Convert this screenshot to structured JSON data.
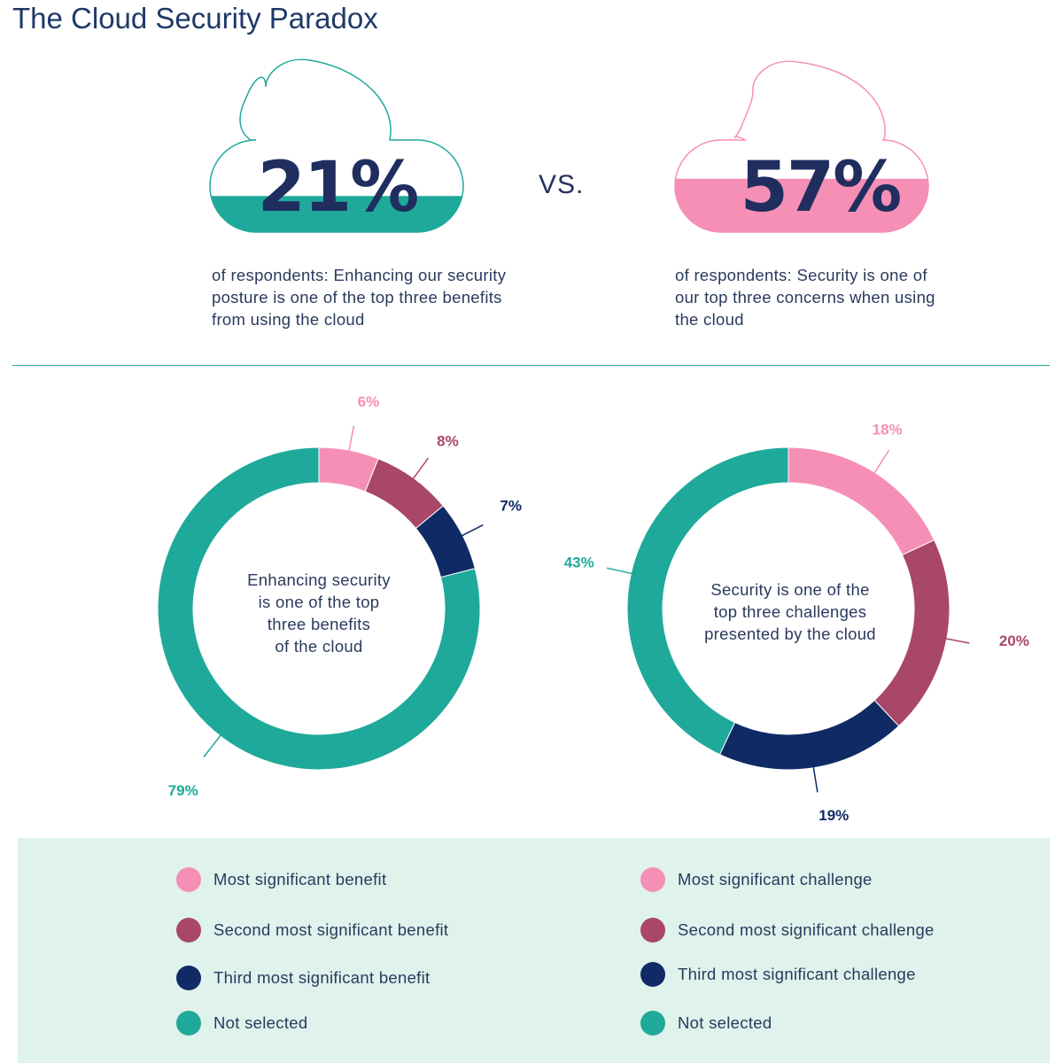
{
  "title": "The Cloud Security Paradox",
  "vs_label": "VS.",
  "colors": {
    "teal": "#1fa99a",
    "pink": "#f58fb6",
    "maroon": "#a94768",
    "navy": "#0f2a64",
    "dark_text": "#1f2e5f",
    "legend_bg": "#dff2ec"
  },
  "left_cloud": {
    "stat": "21%",
    "fill_fraction": 0.21,
    "fill_color": "#1fa99a",
    "outline_color": "#1fa99a",
    "description": "of respondents: Enhancing our security posture is one of the top three benefits from using the cloud"
  },
  "right_cloud": {
    "stat": "57%",
    "fill_fraction": 0.57,
    "fill_color": "#f58fb6",
    "outline_color": "#f58fb6",
    "description": "of respondents: Security is one of our top three concerns when using the cloud"
  },
  "chart_data": [
    {
      "type": "pie",
      "center_label": "Enhancing security is one of the top three benefits of the cloud",
      "center_lines": [
        "Enhancing security",
        "is one of the top",
        "three benefits",
        "of the cloud"
      ],
      "categories": [
        "Most significant benefit",
        "Second most significant benefit",
        "Third most significant benefit",
        "Not selected"
      ],
      "values": [
        6,
        8,
        7,
        79
      ],
      "labels": [
        "6%",
        "8%",
        "7%",
        "79%"
      ],
      "colors": [
        "#f58fb6",
        "#a94768",
        "#0f2a64",
        "#1fa99a"
      ]
    },
    {
      "type": "pie",
      "center_label": "Security is one of the top three challenges presented by the cloud",
      "center_lines": [
        "Security is one of the",
        "top three challenges",
        "presented by the cloud"
      ],
      "categories": [
        "Most significant challenge",
        "Second most significant challenge",
        "Third most significant challenge",
        "Not selected"
      ],
      "values": [
        18,
        20,
        19,
        43
      ],
      "labels": [
        "18%",
        "20%",
        "19%",
        "43%"
      ],
      "colors": [
        "#f58fb6",
        "#a94768",
        "#0f2a64",
        "#1fa99a"
      ]
    }
  ],
  "legend": {
    "left": [
      {
        "label": "Most significant benefit",
        "color": "#f58fb6"
      },
      {
        "label": "Second most significant benefit",
        "color": "#a94768"
      },
      {
        "label": "Third most significant benefit",
        "color": "#0f2a64"
      },
      {
        "label": "Not selected",
        "color": "#1fa99a"
      }
    ],
    "right": [
      {
        "label": "Most significant challenge",
        "color": "#f58fb6"
      },
      {
        "label": "Second most significant challenge",
        "color": "#a94768"
      },
      {
        "label": "Third most significant challenge",
        "color": "#0f2a64"
      },
      {
        "label": "Not selected",
        "color": "#1fa99a"
      }
    ]
  }
}
